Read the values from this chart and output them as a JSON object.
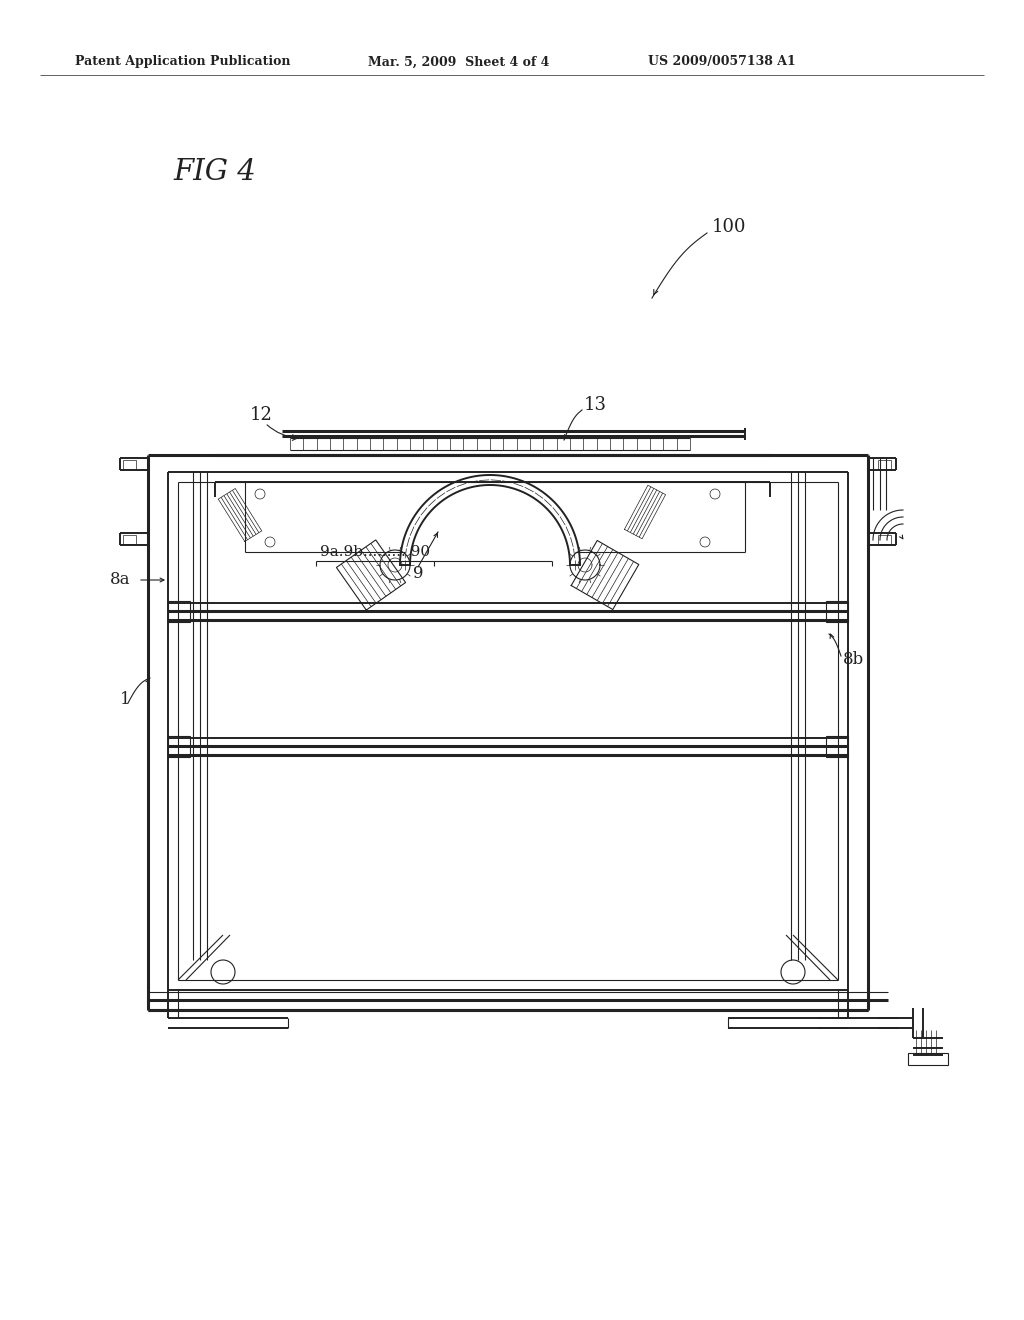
{
  "bg_color": "#ffffff",
  "line_color": "#222222",
  "header_left": "Patent Application Publication",
  "header_mid": "Mar. 5, 2009  Sheet 4 of 4",
  "header_right": "US 2009/0057138 A1",
  "fig_label": "FIG 4",
  "ref_100": "100",
  "ref_12": "12",
  "ref_13": "13",
  "ref_8a": "8a",
  "ref_8b": "8b",
  "ref_9a9b90": "9a.9b......... 90",
  "ref_9": "9",
  "ref_1": "1",
  "fig_width": 1024,
  "fig_height": 1320
}
